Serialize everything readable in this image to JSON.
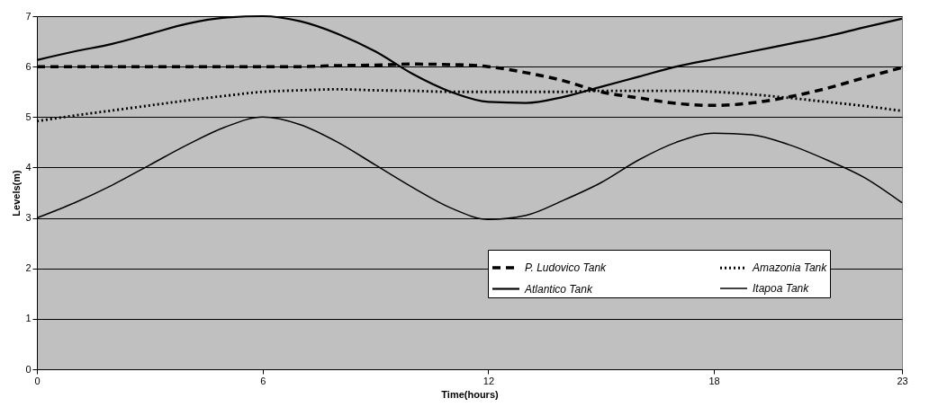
{
  "chart_data": {
    "type": "line",
    "xlabel": "Time(hours)",
    "ylabel": "Levels(m)",
    "x": [
      0,
      1,
      2,
      3,
      4,
      5,
      6,
      7,
      8,
      9,
      10,
      11,
      12,
      13,
      14,
      15,
      16,
      17,
      18,
      19,
      20,
      21,
      22,
      23
    ],
    "series": [
      {
        "name": "P. Ludovico Tank",
        "color": "#000000",
        "line_style": "dashed",
        "values": [
          6.0,
          6.0,
          6.0,
          6.0,
          6.0,
          6.0,
          6.0,
          6.0,
          6.02,
          6.03,
          6.05,
          6.04,
          6.0,
          5.88,
          5.72,
          5.5,
          5.38,
          5.27,
          5.23,
          5.28,
          5.4,
          5.57,
          5.78,
          5.98
        ]
      },
      {
        "name": "Amazonia Tank",
        "color": "#000000",
        "line_style": "dotted",
        "values": [
          4.92,
          5.03,
          5.13,
          5.23,
          5.33,
          5.42,
          5.5,
          5.53,
          5.55,
          5.53,
          5.52,
          5.5,
          5.5,
          5.5,
          5.5,
          5.52,
          5.52,
          5.52,
          5.5,
          5.45,
          5.38,
          5.3,
          5.22,
          5.12
        ]
      },
      {
        "name": "Atlantico Tank",
        "color": "#000000",
        "line_style": "solid",
        "values": [
          6.13,
          6.3,
          6.45,
          6.65,
          6.85,
          6.97,
          7.0,
          6.9,
          6.65,
          6.3,
          5.85,
          5.5,
          5.3,
          5.28,
          5.4,
          5.6,
          5.8,
          6.0,
          6.15,
          6.3,
          6.45,
          6.6,
          6.78,
          6.95
        ]
      },
      {
        "name": "Itapoa Tank",
        "color": "#000000",
        "line_style": "solid",
        "values": [
          3.0,
          3.3,
          3.65,
          4.05,
          4.45,
          4.8,
          5.0,
          4.85,
          4.5,
          4.05,
          3.6,
          3.2,
          2.97,
          3.05,
          3.35,
          3.7,
          4.15,
          4.5,
          4.68,
          4.65,
          4.45,
          4.15,
          3.8,
          3.3
        ]
      }
    ],
    "xlim": [
      0,
      23
    ],
    "xticks": [
      0,
      6,
      12,
      18,
      23
    ],
    "ylim": [
      0,
      7
    ],
    "yticks": [
      0,
      1,
      2,
      3,
      4,
      5,
      6,
      7
    ],
    "grid": "y",
    "legend": "bottom right",
    "marker": "none"
  }
}
